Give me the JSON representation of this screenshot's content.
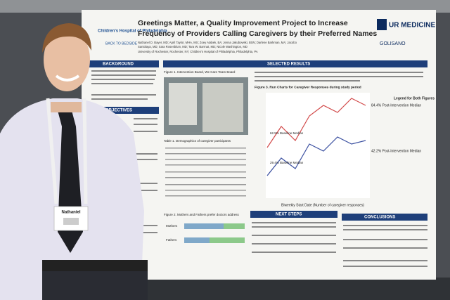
{
  "poster": {
    "title_lines": [
      "Greetings Matter, a Quality Improvement Project to Increase",
      "Frequency of Providers Calling Caregivers by their Preferred Names"
    ],
    "hospital": "Children's Hospital of Philadelphia",
    "program": "BACK TO BEDSIDE",
    "university_logo": "UR MEDICINE",
    "partner_logo": "GOLISANO",
    "author_lines": [
      "Nathanel D. Bayer, MD; April Taylor, MHA, MS; Zoey Atabek, BA; Jenna Jakubowski, BSN; Darlene Barkman, MA; Jacobo",
      "Santolaya, MD; Sara Rosenblum, MD; Tara W. Barrnat, MD; Nicole Washington, MD",
      "University of Rochester, Rochester, NY; Children's Hospital of Philadelphia, Philadelphia, PA"
    ],
    "sections": {
      "background": "BACKGROUND",
      "objectives": "OBJECTIVES",
      "results": "SELECTED RESULTS",
      "next_steps": "NEXT STEPS",
      "conclusions": "CONCLUSIONS"
    },
    "figure1": "Figure 1. Intervention Board, We Care Team Board",
    "table1": "Table 1. Demographics of caregiver participants",
    "figure2": "Figure 2. Mothers and Fathers prefer doctors address",
    "figure2_rows": [
      "Mothers",
      "Fathers"
    ],
    "figure3": "Figure 3. Run Charts for Caregiver Responses during study period",
    "chart_labels": [
      "84.4% Post-Intervention Median",
      "42.2% Post-Intervention Median",
      "62.5% Baseline Median",
      "29.4% Baseline Median"
    ],
    "chart_x_label": "Biweekly Start Date (Number of caregiver responses)",
    "chart_legend_title": "Legend for Both Figures"
  },
  "badge": {
    "name": "Nathaniel"
  }
}
